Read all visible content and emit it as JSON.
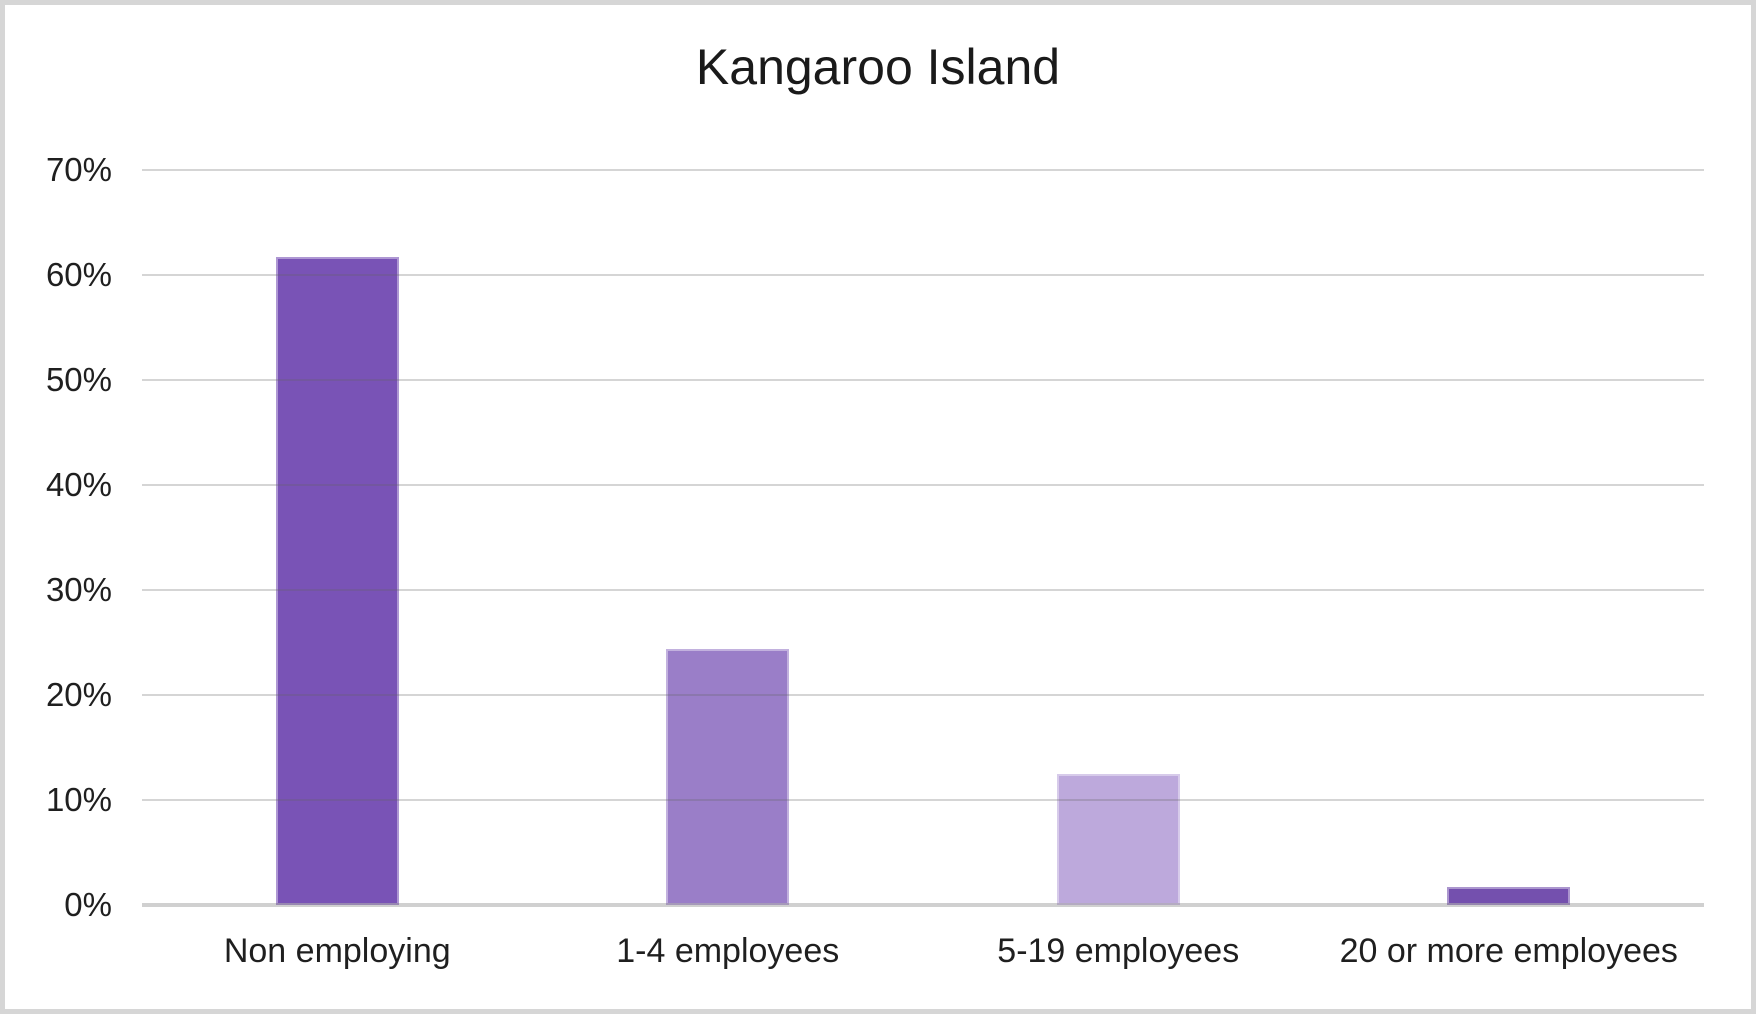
{
  "page": {
    "background_color": "#FFFFFF",
    "frame_border_color": "#D6D6D6"
  },
  "chart_data": {
    "type": "bar",
    "title": "Kangaroo Island",
    "categories": [
      "Non employing",
      "1-4 employees",
      "5-19 employees",
      "20 or more employees"
    ],
    "values": [
      61.7,
      24.4,
      12.5,
      1.7
    ],
    "value_unit": "%",
    "xlabel": "",
    "ylabel": "",
    "ylim": [
      0,
      70
    ],
    "ytick_step": 10,
    "ytick_labels": [
      "0%",
      "10%",
      "20%",
      "30%",
      "40%",
      "50%",
      "60%",
      "70%"
    ],
    "bar_colors": [
      "#7953B6",
      "#9A7EC8",
      "#BDA9DC",
      "#7450AE"
    ],
    "grid": true,
    "gridline_color": "#D9D9D9",
    "axis_line_color": "#D6D6D6",
    "text_color": "#1F1F1F",
    "title_color": "#1A1A1A",
    "legend": "none"
  }
}
